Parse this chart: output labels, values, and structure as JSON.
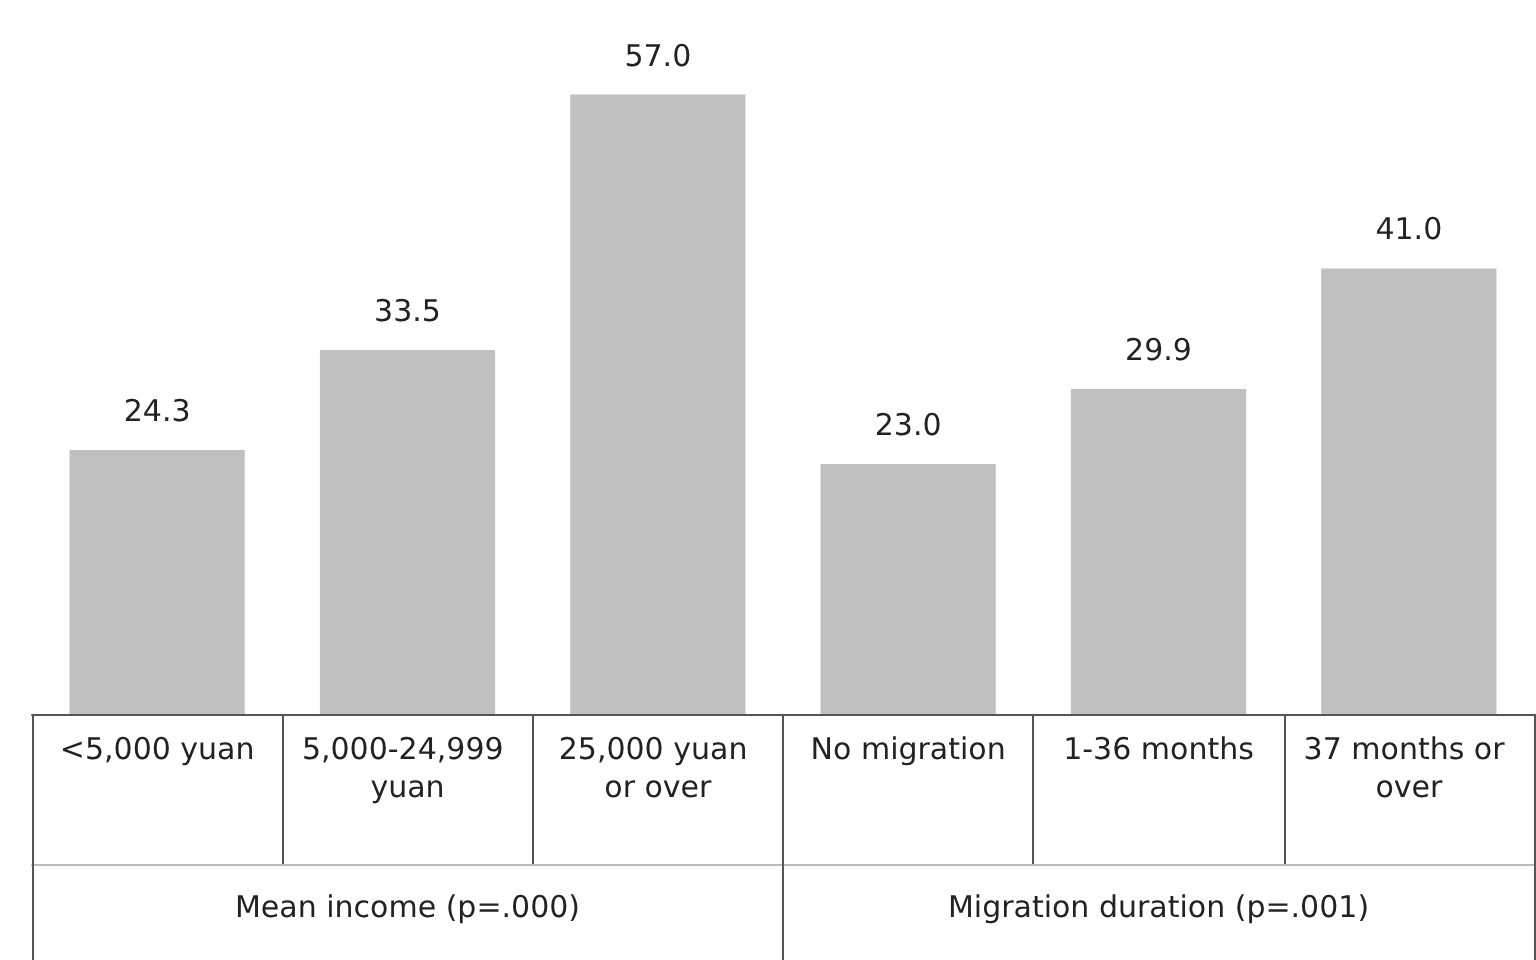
{
  "chart_data": {
    "type": "bar",
    "categories": [
      "<5,000 yuan",
      "5,000-24,999 yuan",
      "25,000 yuan or over",
      "No migration",
      "1-36 months",
      "37 months or over"
    ],
    "values": [
      24.3,
      33.5,
      57.0,
      23.0,
      29.9,
      41.0
    ],
    "color": "#c0c0c0",
    "value_labels": [
      "24.3",
      "33.5",
      "57.0",
      "23.0",
      "29.9",
      "41.0"
    ],
    "annotations": [
      "Mean income (p=.000)",
      "Migration duration (p=.001)"
    ]
  }
}
